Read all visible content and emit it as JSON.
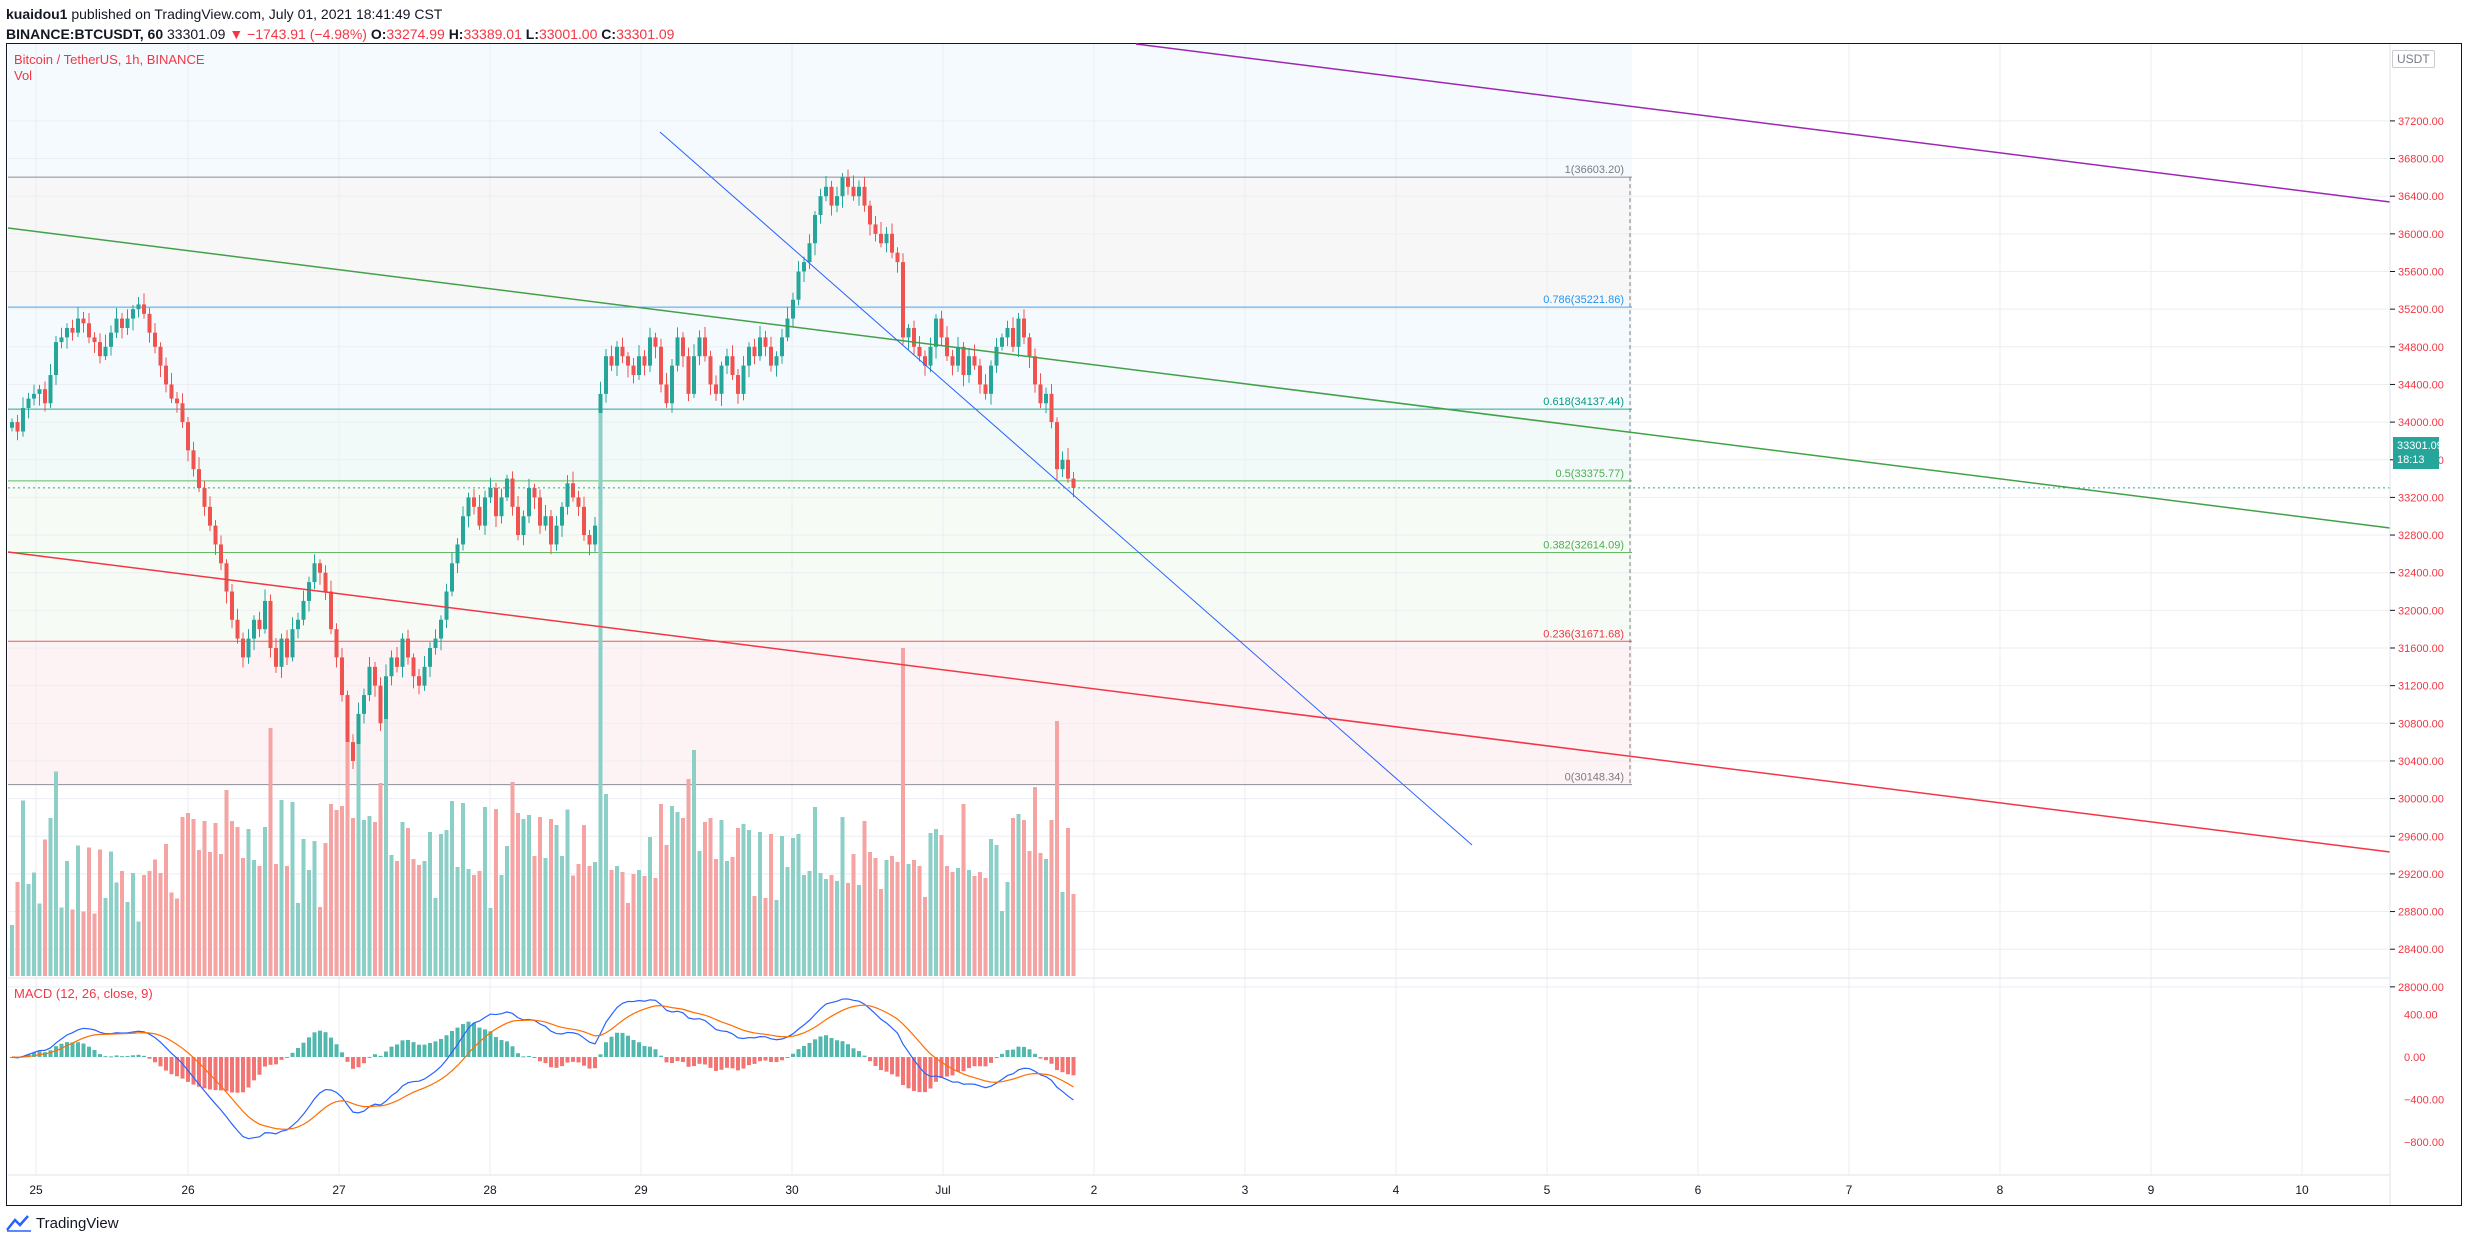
{
  "header": {
    "author": "kuaidou1",
    "published_text": "published on TradingView.com, July 01, 2021 18:41:49 CST",
    "symbol": "BINANCE:BTCUSDT, 60",
    "last": "33301.09",
    "change": "▼ −1743.91 (−4.98%)",
    "o_label": "O:",
    "o_value": "33274.99",
    "h_label": "H:",
    "h_value": "33389.01",
    "l_label": "L:",
    "l_value": "33001.00",
    "c_label": "C:",
    "c_value": "33301.09"
  },
  "legend": {
    "title": "Bitcoin / TetherUS, 1h, BINANCE",
    "volume": "Vol",
    "macd": "MACD (12, 26, close, 9)"
  },
  "price_axis": {
    "currency": "USDT",
    "labels": [
      "37200.00",
      "36800.00",
      "36400.00",
      "36000.00",
      "35600.00",
      "35200.00",
      "34800.00",
      "34400.00",
      "34000.00",
      "33600.00",
      "33200.00",
      "32800.00",
      "32400.00",
      "32000.00",
      "31600.00",
      "31200.00",
      "30800.00",
      "30400.00",
      "30000.00",
      "29600.00",
      "29200.00",
      "28800.00",
      "28400.00",
      "28000.00"
    ],
    "current_price": "33301.09",
    "countdown": "18:13"
  },
  "macd_axis": {
    "labels": [
      "400.00",
      "0.00",
      "−400.00",
      "−800.00"
    ]
  },
  "time_axis": {
    "labels": [
      "25",
      "26",
      "27",
      "28",
      "29",
      "30",
      "Jul",
      "2",
      "3",
      "4",
      "5",
      "6",
      "7",
      "8",
      "9",
      "10"
    ]
  },
  "fib_levels": [
    {
      "label": "1(36603.20)",
      "price": 36603.2,
      "color": "#787b86"
    },
    {
      "label": "0.786(35221.86)",
      "price": 35221.86,
      "color": "#2196f3"
    },
    {
      "label": "0.618(34137.44)",
      "price": 34137.44,
      "color": "#089981"
    },
    {
      "label": "0.5(33375.77)",
      "price": 33375.77,
      "color": "#4caf50"
    },
    {
      "label": "0.382(32614.09)",
      "price": 32614.09,
      "color": "#4caf50"
    },
    {
      "label": "0.236(31671.68)",
      "price": 31671.68,
      "color": "#f23645"
    },
    {
      "label": "0(30148.34)",
      "price": 30148.34,
      "color": "#787b86"
    }
  ],
  "colors": {
    "up": "#26a69a",
    "down": "#ef5350",
    "up_vol": "#8ccfc7",
    "down_vol": "#f5a3a3",
    "macd_line": "#2962ff",
    "signal_line": "#ff6d00",
    "channel_green": "#43a047",
    "channel_red": "#f23645",
    "channel_purple": "#9c27b0",
    "trend_blue": "#2962ff"
  },
  "footer": {
    "brand": "TradingView"
  },
  "chart_data": {
    "type": "candlestick",
    "title": "Bitcoin / TetherUS, 1h, BINANCE",
    "interval": "1h",
    "ylim": [
      27800,
      37400
    ],
    "x": "hourly bars from Jun 24 ~20:00 to Jul 1 18:00 (approximate, read from chart)",
    "close": [
      34000,
      33900,
      34150,
      34250,
      34300,
      34350,
      34200,
      34500,
      34850,
      34900,
      35000,
      34950,
      35100,
      35050,
      34900,
      34850,
      34700,
      34800,
      34950,
      35100,
      35000,
      35100,
      35200,
      35250,
      35150,
      34950,
      34800,
      34600,
      34400,
      34250,
      34200,
      34000,
      33700,
      33500,
      33300,
      33100,
      32900,
      32700,
      32500,
      32200,
      31900,
      31700,
      31500,
      31700,
      31900,
      31800,
      32100,
      31600,
      31400,
      31700,
      31500,
      31800,
      31900,
      32100,
      32300,
      32500,
      32400,
      32200,
      31800,
      31500,
      31100,
      30600,
      30400,
      30900,
      31100,
      31400,
      31200,
      30800,
      31300,
      31500,
      31400,
      31700,
      31500,
      31300,
      31200,
      31400,
      31600,
      31700,
      31900,
      32200,
      32500,
      32700,
      33000,
      33200,
      33100,
      32900,
      33200,
      33300,
      33000,
      33200,
      33400,
      33100,
      32800,
      33000,
      33300,
      33200,
      32900,
      33000,
      32700,
      32900,
      33100,
      33350,
      33200,
      33100,
      32800,
      32700,
      32900,
      34300,
      34700,
      34600,
      34800,
      34700,
      34600,
      34500,
      34700,
      34600,
      34900,
      34800,
      34400,
      34200,
      34600,
      34900,
      34700,
      34300,
      34700,
      34900,
      34700,
      34400,
      34300,
      34600,
      34700,
      34500,
      34300,
      34600,
      34800,
      34700,
      34900,
      34800,
      34600,
      34700,
      34900,
      35100,
      35300,
      35600,
      35700,
      35900,
      36200,
      36400,
      36500,
      36300,
      36400,
      36600,
      36500,
      36400,
      36500,
      36300,
      36100,
      36000,
      35900,
      36000,
      35800,
      35700,
      34900,
      35000,
      34800,
      34700,
      34600,
      34800,
      35100,
      34900,
      34700,
      34600,
      34800,
      34500,
      34700,
      34600,
      34400,
      34300,
      34600,
      34800,
      34900,
      35000,
      34800,
      35100,
      34900,
      34700,
      34400,
      34200,
      34300,
      34000,
      33500,
      33600,
      33400,
      33300
    ]
  }
}
